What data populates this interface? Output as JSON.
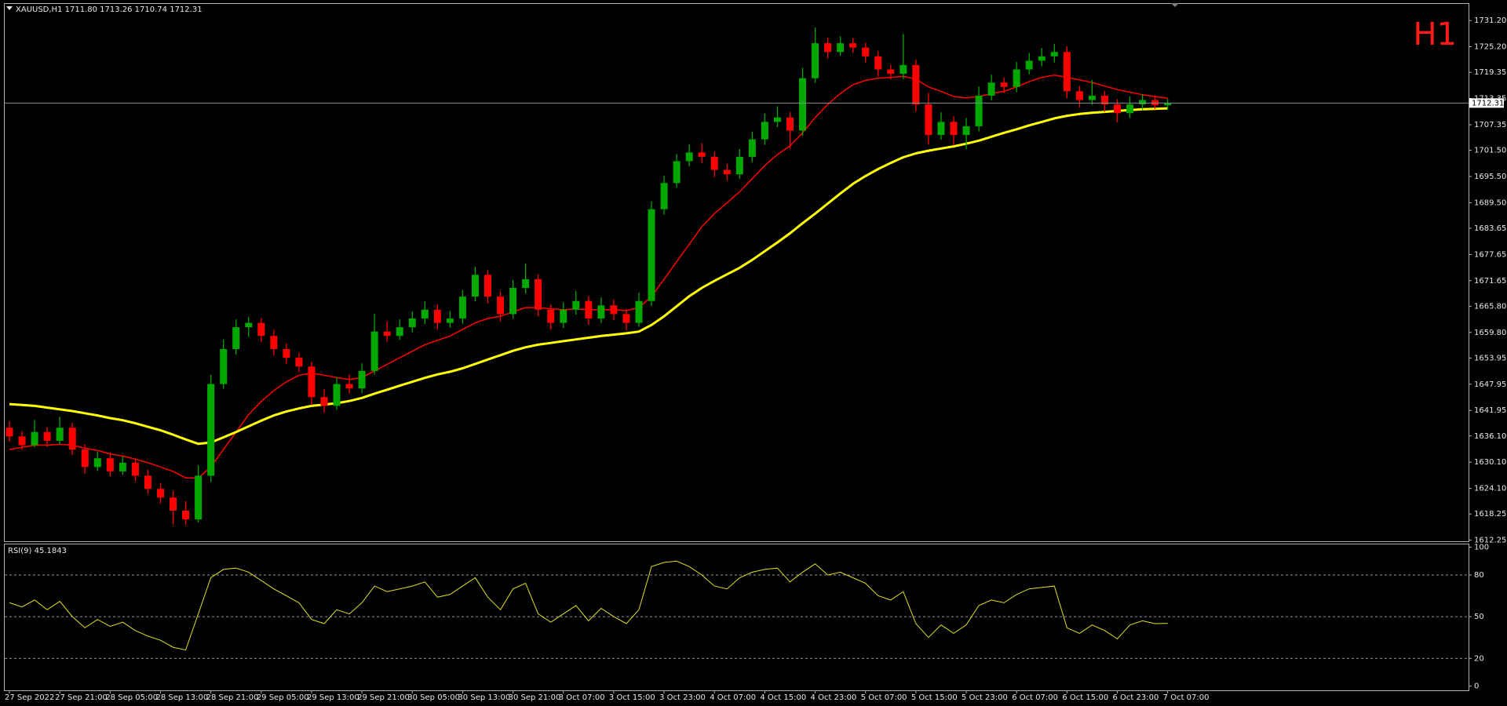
{
  "chart_data": [
    {
      "type": "candlestick",
      "title": "XAUUSD,H1  1711.80 1713.26 1710.74 1712.31",
      "timeframe": "H1",
      "categories": [
        "27 Sep 2022",
        null,
        null,
        null,
        "27 Sep 21:00",
        null,
        null,
        null,
        "28 Sep 05:00",
        null,
        null,
        null,
        "28 Sep 13:00",
        null,
        null,
        null,
        "28 Sep 21:00",
        null,
        null,
        null,
        "29 Sep 05:00",
        null,
        null,
        null,
        "29 Sep 13:00",
        null,
        null,
        null,
        "29 Sep 21:00",
        null,
        null,
        null,
        "30 Sep 05:00",
        null,
        null,
        null,
        "30 Sep 13:00",
        null,
        null,
        null,
        "30 Sep 21:00",
        null,
        null,
        null,
        "3 Oct 07:00",
        null,
        null,
        null,
        "3 Oct 15:00",
        null,
        null,
        null,
        "3 Oct 23:00",
        null,
        null,
        null,
        "4 Oct 07:00",
        null,
        null,
        null,
        "4 Oct 15:00",
        null,
        null,
        null,
        "4 Oct 23:00",
        null,
        null,
        null,
        "5 Oct 07:00",
        null,
        null,
        null,
        "5 Oct 15:00",
        null,
        null,
        null,
        "5 Oct 23:00",
        null,
        null,
        null,
        "6 Oct 07:00",
        null,
        null,
        null,
        "6 Oct 15:00",
        null,
        null,
        null,
        "6 Oct 23:00",
        null,
        null,
        null,
        "7 Oct 07:00"
      ],
      "ohlc": [
        [
          1638,
          1639.5,
          1634.8,
          1636
        ],
        [
          1636,
          1637.2,
          1632.9,
          1634
        ],
        [
          1634,
          1639.8,
          1633.5,
          1637
        ],
        [
          1637,
          1638.1,
          1633.6,
          1635
        ],
        [
          1635,
          1640.5,
          1634.2,
          1638
        ],
        [
          1638,
          1639.1,
          1631.8,
          1633
        ],
        [
          1633,
          1634.2,
          1627.5,
          1629
        ],
        [
          1629,
          1632.6,
          1628.1,
          1631
        ],
        [
          1631,
          1632.3,
          1626.9,
          1628
        ],
        [
          1628,
          1631.4,
          1627.2,
          1630
        ],
        [
          1630,
          1631.1,
          1625.8,
          1627
        ],
        [
          1627,
          1628.4,
          1622.9,
          1624
        ],
        [
          1624,
          1625.3,
          1620.6,
          1622
        ],
        [
          1622,
          1623.5,
          1615.9,
          1619
        ],
        [
          1619,
          1621.2,
          1615.8,
          1617
        ],
        [
          1617,
          1629.4,
          1616.3,
          1627
        ],
        [
          1627,
          1650.1,
          1625.6,
          1648
        ],
        [
          1648,
          1658.2,
          1646.9,
          1656
        ],
        [
          1656,
          1662.8,
          1654.7,
          1661
        ],
        [
          1661,
          1663.4,
          1658.8,
          1662
        ],
        [
          1662,
          1663.1,
          1657.6,
          1659
        ],
        [
          1659,
          1660.4,
          1654.5,
          1656
        ],
        [
          1656,
          1657.3,
          1652.6,
          1654
        ],
        [
          1654,
          1655.2,
          1650.7,
          1652
        ],
        [
          1652,
          1653.1,
          1643.2,
          1645
        ],
        [
          1645,
          1646.8,
          1641.4,
          1643
        ],
        [
          1643,
          1649.6,
          1642.1,
          1648
        ],
        [
          1648,
          1650.2,
          1645.8,
          1647
        ],
        [
          1647,
          1652.7,
          1645.9,
          1651
        ],
        [
          1651,
          1664.1,
          1650.2,
          1660
        ],
        [
          1660,
          1662.3,
          1657.7,
          1659
        ],
        [
          1659,
          1662.8,
          1658.1,
          1661
        ],
        [
          1661,
          1664.6,
          1659.8,
          1663
        ],
        [
          1663,
          1666.9,
          1661.7,
          1665
        ],
        [
          1665,
          1666.2,
          1660.4,
          1662
        ],
        [
          1662,
          1664.7,
          1660.9,
          1663
        ],
        [
          1663,
          1669.5,
          1661.8,
          1668
        ],
        [
          1668,
          1674.8,
          1666.9,
          1673
        ],
        [
          1673,
          1674.1,
          1666.4,
          1668
        ],
        [
          1668,
          1669.2,
          1662.3,
          1664
        ],
        [
          1664,
          1671.8,
          1662.9,
          1670
        ],
        [
          1670,
          1675.6,
          1668.7,
          1672
        ],
        [
          1672,
          1673.1,
          1663.5,
          1665
        ],
        [
          1665,
          1666.2,
          1660.4,
          1662
        ],
        [
          1662,
          1666.7,
          1660.8,
          1665
        ],
        [
          1665,
          1669.3,
          1663.9,
          1667
        ],
        [
          1667,
          1668.1,
          1661.5,
          1663
        ],
        [
          1663,
          1667.8,
          1661.9,
          1666
        ],
        [
          1666,
          1667.4,
          1662.6,
          1664
        ],
        [
          1664,
          1665.2,
          1660.3,
          1662
        ],
        [
          1662,
          1668.9,
          1661.1,
          1667
        ],
        [
          1667,
          1689.8,
          1665.9,
          1688
        ],
        [
          1688,
          1695.7,
          1686.8,
          1694
        ],
        [
          1694,
          1700.6,
          1692.9,
          1699
        ],
        [
          1699,
          1702.9,
          1697.8,
          1701
        ],
        [
          1701,
          1703.1,
          1698.6,
          1700
        ],
        [
          1700,
          1701.2,
          1695.4,
          1697
        ],
        [
          1697,
          1698.4,
          1694.6,
          1696
        ],
        [
          1696,
          1701.8,
          1694.9,
          1700
        ],
        [
          1700,
          1705.7,
          1698.8,
          1704
        ],
        [
          1704,
          1709.9,
          1702.7,
          1708
        ],
        [
          1708,
          1711.6,
          1706.8,
          1709
        ],
        [
          1709,
          1710.3,
          1701.9,
          1706
        ],
        [
          1706,
          1720.4,
          1704.8,
          1718
        ],
        [
          1718,
          1729.6,
          1716.9,
          1726
        ],
        [
          1726,
          1727.3,
          1722.5,
          1724
        ],
        [
          1724,
          1727.6,
          1723.1,
          1726
        ],
        [
          1726,
          1727.2,
          1723.8,
          1725
        ],
        [
          1725,
          1726.1,
          1721.6,
          1723
        ],
        [
          1723,
          1724.2,
          1718.4,
          1720
        ],
        [
          1720,
          1721.1,
          1717.7,
          1719
        ],
        [
          1719,
          1728.1,
          1717.8,
          1721
        ],
        [
          1721,
          1722.3,
          1710.4,
          1712
        ],
        [
          1712,
          1714.6,
          1702.8,
          1705
        ],
        [
          1705,
          1710.2,
          1703.9,
          1708
        ],
        [
          1708,
          1709.3,
          1702.6,
          1705
        ],
        [
          1705,
          1708.9,
          1701.7,
          1707
        ],
        [
          1707,
          1716.1,
          1705.8,
          1714
        ],
        [
          1714,
          1718.8,
          1712.9,
          1717
        ],
        [
          1717,
          1718.2,
          1714.6,
          1716
        ],
        [
          1716,
          1721.7,
          1714.8,
          1720
        ],
        [
          1720,
          1723.8,
          1718.9,
          1722
        ],
        [
          1722,
          1724.9,
          1720.7,
          1723
        ],
        [
          1723,
          1725.8,
          1721.6,
          1724
        ],
        [
          1724,
          1725.3,
          1713.4,
          1715
        ],
        [
          1715,
          1716.2,
          1711.3,
          1713
        ],
        [
          1713,
          1717.6,
          1711.9,
          1714
        ],
        [
          1714,
          1715.1,
          1710.3,
          1712
        ],
        [
          1712,
          1713.2,
          1707.9,
          1710
        ],
        [
          1710,
          1713.8,
          1708.9,
          1712
        ],
        [
          1712,
          1714.4,
          1710.7,
          1713
        ],
        [
          1713,
          1714.1,
          1710.9,
          1711.8
        ],
        [
          1711.8,
          1713.26,
          1710.74,
          1712.31
        ]
      ],
      "up_color": "#00a800",
      "down_color": "#ff0000",
      "series": [
        {
          "color": "#ff0000",
          "width": 1.5,
          "values": [
            1633,
            1633.5,
            1634,
            1634,
            1634.2,
            1634,
            1633.3,
            1632.8,
            1632,
            1631.5,
            1630.8,
            1630,
            1629,
            1628,
            1626.5,
            1626.5,
            1629,
            1633,
            1637,
            1641,
            1644,
            1646.5,
            1648.5,
            1650,
            1650.5,
            1650,
            1649.5,
            1649,
            1649.5,
            1651,
            1652.5,
            1654,
            1655.5,
            1657,
            1658,
            1659,
            1660.5,
            1662,
            1663,
            1663.5,
            1664.5,
            1665.5,
            1665.5,
            1665.2,
            1665,
            1665.2,
            1665,
            1665,
            1665,
            1664.8,
            1665.5,
            1668,
            1672,
            1676,
            1680,
            1684,
            1687,
            1689.5,
            1692,
            1695,
            1698,
            1700.5,
            1702.5,
            1705.5,
            1709,
            1712,
            1714.5,
            1716.5,
            1717.5,
            1718,
            1718.2,
            1718.4,
            1717.8,
            1716,
            1715,
            1713.8,
            1713.5,
            1713.8,
            1714.5,
            1715,
            1716,
            1717.2,
            1718.2,
            1718.7,
            1718.2,
            1717.6,
            1717,
            1716.2,
            1715.4,
            1714.8,
            1714.2,
            1713.8,
            1713.4
          ]
        },
        {
          "color": "#ffff00",
          "width": 3,
          "values": [
            1643.4,
            1643.2,
            1643,
            1642.6,
            1642.2,
            1641.8,
            1641.3,
            1640.8,
            1640.2,
            1639.7,
            1639,
            1638.2,
            1637.4,
            1636.4,
            1635.3,
            1634.3,
            1634.6,
            1635.8,
            1637,
            1638.3,
            1639.6,
            1640.8,
            1641.7,
            1642.4,
            1643,
            1643.3,
            1643.6,
            1644.1,
            1644.8,
            1645.8,
            1646.7,
            1647.6,
            1648.5,
            1649.4,
            1650.2,
            1650.8,
            1651.6,
            1652.6,
            1653.6,
            1654.6,
            1655.6,
            1656.4,
            1657,
            1657.4,
            1657.8,
            1658.2,
            1658.6,
            1659,
            1659.3,
            1659.6,
            1660,
            1661.5,
            1663.5,
            1665.8,
            1668.1,
            1670,
            1671.6,
            1673.1,
            1674.6,
            1676.4,
            1678.4,
            1680.4,
            1682.5,
            1684.8,
            1687,
            1689.3,
            1691.6,
            1693.8,
            1695.6,
            1697.2,
            1698.6,
            1699.9,
            1700.8,
            1701.4,
            1701.9,
            1702.4,
            1703,
            1703.7,
            1704.6,
            1705.5,
            1706.3,
            1707.2,
            1708,
            1708.8,
            1709.4,
            1709.8,
            1710.1,
            1710.3,
            1710.5,
            1710.7,
            1710.9,
            1711,
            1711.1
          ]
        }
      ],
      "price_line": {
        "value": 1712.31,
        "label": "1712.31"
      },
      "ylim": [
        1612,
        1735
      ],
      "yticks": [
        {
          "value": 1731.2,
          "label": "1731.20"
        },
        {
          "value": 1725.2,
          "label": "1725.20"
        },
        1719.35,
        1713.35,
        1707.35,
        {
          "value": 1701.5,
          "label": "1701.50"
        },
        {
          "value": 1695.5,
          "label": "1695.50"
        },
        {
          "value": 1689.5,
          "label": "1689.50"
        },
        1683.65,
        1677.65,
        1671.65,
        {
          "value": 1665.8,
          "label": "1665.80"
        },
        {
          "value": 1659.8,
          "label": "1659.80"
        },
        1653.95,
        1647.95,
        1641.95,
        {
          "value": 1636.1,
          "label": "1636.10"
        },
        {
          "value": 1630.1,
          "label": "1630.10"
        },
        {
          "value": 1624.1,
          "label": "1624.10"
        },
        1618.25,
        1612.25
      ]
    },
    {
      "type": "line",
      "title": "RSI(9) 45.1843",
      "color": "#e0e020",
      "values": [
        60,
        57,
        62,
        55,
        61,
        50,
        42,
        48,
        43,
        46,
        40,
        36,
        33,
        28,
        26,
        52,
        78,
        84,
        85,
        82,
        76,
        70,
        65,
        60,
        48,
        45,
        55,
        52,
        60,
        72,
        68,
        70,
        72,
        75,
        64,
        66,
        72,
        78,
        64,
        55,
        70,
        74,
        52,
        46,
        52,
        58,
        47,
        56,
        50,
        45,
        55,
        86,
        89,
        90,
        86,
        80,
        72,
        70,
        78,
        82,
        84,
        85,
        75,
        82,
        88,
        80,
        82,
        78,
        74,
        65,
        62,
        68,
        45,
        35,
        44,
        38,
        44,
        58,
        62,
        60,
        66,
        70,
        71,
        72,
        42,
        38,
        44,
        40,
        34,
        44,
        47,
        45,
        45.1843
      ],
      "levels": [
        80,
        50,
        20
      ],
      "ylim": [
        -3,
        102
      ],
      "yticks": [
        100,
        80,
        50,
        20,
        0
      ]
    }
  ]
}
